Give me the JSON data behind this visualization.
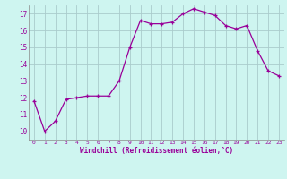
{
  "x": [
    0,
    1,
    2,
    3,
    4,
    5,
    6,
    7,
    8,
    9,
    10,
    11,
    12,
    13,
    14,
    15,
    16,
    17,
    18,
    19,
    20,
    21,
    22,
    23
  ],
  "y": [
    11.8,
    10.0,
    10.6,
    11.9,
    12.0,
    12.1,
    12.1,
    12.1,
    13.0,
    15.0,
    16.6,
    16.4,
    16.4,
    16.5,
    17.0,
    17.3,
    17.1,
    16.9,
    16.3,
    16.1,
    16.3,
    14.8,
    13.6,
    13.3
  ],
  "line_color": "#990099",
  "marker": "+",
  "marker_size": 3,
  "linewidth": 0.9,
  "xlabel": "Windchill (Refroidissement éolien,°C)",
  "xlim": [
    -0.5,
    23.5
  ],
  "ylim": [
    9.5,
    17.5
  ],
  "yticks": [
    10,
    11,
    12,
    13,
    14,
    15,
    16,
    17
  ],
  "xticks": [
    0,
    1,
    2,
    3,
    4,
    5,
    6,
    7,
    8,
    9,
    10,
    11,
    12,
    13,
    14,
    15,
    16,
    17,
    18,
    19,
    20,
    21,
    22,
    23
  ],
  "bg_color": "#cef5f0",
  "grid_color": "#aacccc",
  "line_spine_color": "#888888",
  "tick_color": "#990099",
  "label_color": "#990099"
}
